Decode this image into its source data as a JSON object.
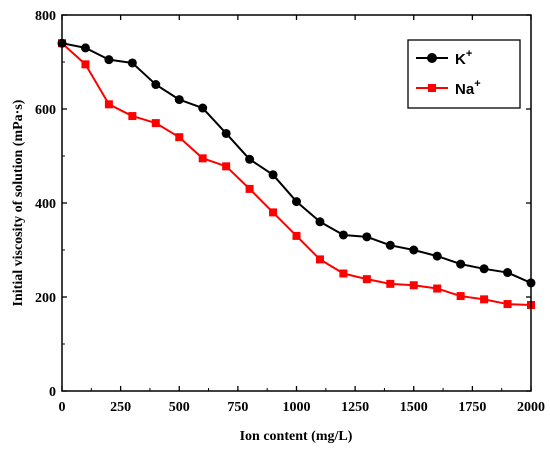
{
  "chart_data": {
    "type": "line",
    "title": "",
    "xlabel": "Ion content (mg/L)",
    "ylabel": "Initial viscosity of solution (mPa·s)",
    "xlim": [
      0,
      2000
    ],
    "ylim": [
      0,
      800
    ],
    "xticks": [
      0,
      250,
      500,
      750,
      1000,
      1250,
      1500,
      1750,
      2000
    ],
    "yticks": [
      0,
      200,
      400,
      600,
      800
    ],
    "grid": false,
    "legend_position": "top-right",
    "x": [
      0,
      100,
      200,
      300,
      400,
      500,
      600,
      700,
      800,
      900,
      1000,
      1100,
      1200,
      1300,
      1400,
      1500,
      1600,
      1700,
      1800,
      1900,
      2000
    ],
    "series": [
      {
        "name": "K",
        "superscript": "+",
        "color": "#000000",
        "marker": "circle",
        "values": [
          740,
          730,
          705,
          698,
          652,
          620,
          602,
          548,
          493,
          460,
          403,
          360,
          332,
          328,
          310,
          300,
          287,
          270,
          260,
          252,
          230
        ]
      },
      {
        "name": "Na",
        "superscript": "+",
        "color": "#ff0000",
        "marker": "square",
        "values": [
          740,
          695,
          610,
          585,
          570,
          540,
          495,
          478,
          430,
          380,
          330,
          280,
          250,
          238,
          228,
          225,
          218,
          202,
          195,
          185,
          183
        ]
      }
    ]
  }
}
